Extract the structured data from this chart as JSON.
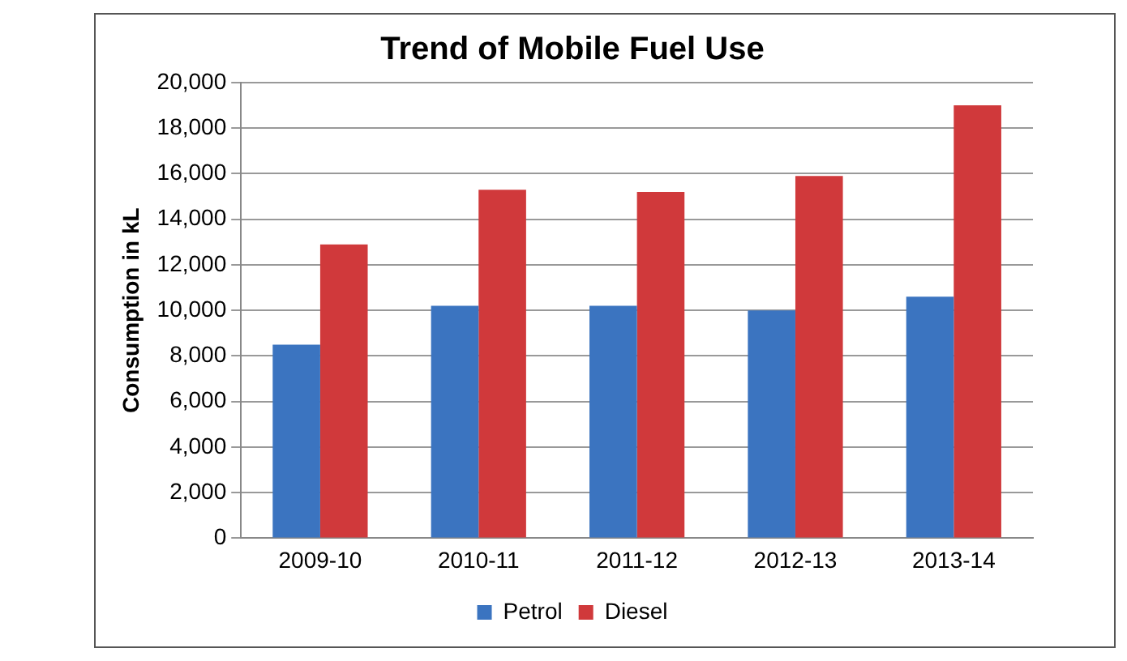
{
  "chart_data": {
    "type": "bar",
    "title": "Trend of Mobile Fuel Use",
    "ylabel": "Consumption in kL",
    "categories": [
      "2009-10",
      "2010-11",
      "2011-12",
      "2012-13",
      "2013-14"
    ],
    "series": [
      {
        "name": "Petrol",
        "color": "#3b74c0",
        "values": [
          8500,
          10200,
          10200,
          10000,
          10600
        ]
      },
      {
        "name": "Diesel",
        "color": "#d0393b",
        "values": [
          12900,
          15300,
          15200,
          15900,
          19000
        ]
      }
    ],
    "ylim": [
      0,
      20000
    ],
    "yticks": [
      0,
      {
        "value": 2000,
        "label": "2,000"
      },
      {
        "value": 4000,
        "label": "4,000"
      },
      {
        "value": 6000,
        "label": "6,000"
      },
      {
        "value": 8000,
        "label": "8,000"
      },
      {
        "value": 10000,
        "label": "10,000"
      },
      {
        "value": 12000,
        "label": "12,000"
      },
      {
        "value": 14000,
        "label": "14,000"
      },
      {
        "value": 16000,
        "label": "16,000"
      },
      {
        "value": 18000,
        "label": "18,000"
      },
      {
        "value": 20000,
        "label": "20,000"
      }
    ],
    "grid": "y",
    "legend": "bottom"
  }
}
